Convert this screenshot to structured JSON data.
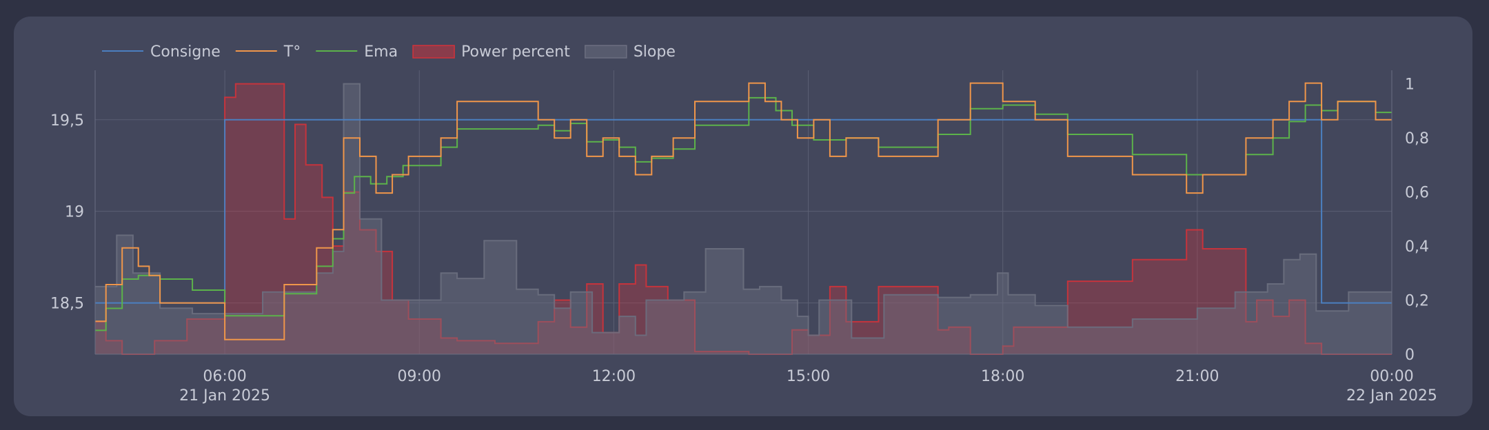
{
  "chart_data": {
    "type": "line",
    "title": "",
    "xlabel": "",
    "ylabel": "",
    "x_axis": {
      "ticks": [
        {
          "time": "2025-01-21T06:00",
          "label": "06:00",
          "sublabel": "21 Jan 2025"
        },
        {
          "time": "2025-01-21T09:00",
          "label": "09:00",
          "sublabel": ""
        },
        {
          "time": "2025-01-21T12:00",
          "label": "12:00",
          "sublabel": ""
        },
        {
          "time": "2025-01-21T15:00",
          "label": "15:00",
          "sublabel": ""
        },
        {
          "time": "2025-01-21T18:00",
          "label": "18:00",
          "sublabel": ""
        },
        {
          "time": "2025-01-21T21:00",
          "label": "21:00",
          "sublabel": ""
        },
        {
          "time": "2025-01-22T00:00",
          "label": "00:00",
          "sublabel": "22 Jan 2025"
        }
      ],
      "xlim": [
        "2025-01-21T04:00",
        "2025-01-22T00:00"
      ]
    },
    "y_left": {
      "ylim": [
        18.22,
        19.77
      ],
      "ticks": [
        {
          "value": 18.5,
          "label": "18,5"
        },
        {
          "value": 19,
          "label": "19"
        },
        {
          "value": 19.5,
          "label": "19,5"
        }
      ]
    },
    "y_right": {
      "ylim": [
        0,
        1.05
      ],
      "ticks": [
        {
          "value": 0,
          "label": "0"
        },
        {
          "value": 0.2,
          "label": "0,2"
        },
        {
          "value": 0.4,
          "label": "0,4"
        },
        {
          "value": 0.6,
          "label": "0,6"
        },
        {
          "value": 0.8,
          "label": "0,8"
        },
        {
          "value": 1,
          "label": "1"
        }
      ]
    },
    "grid": true,
    "legend_position": "top-left",
    "series": [
      {
        "name": "Power percent",
        "kind": "area-step",
        "axis": "right",
        "color": "#d2323a",
        "x": [
          "2025-01-21T04:00",
          "2025-01-21T04:10",
          "2025-01-21T04:25",
          "2025-01-21T04:55",
          "2025-01-21T05:25",
          "2025-01-21T06:00",
          "2025-01-21T06:10",
          "2025-01-21T06:55",
          "2025-01-21T07:05",
          "2025-01-21T07:15",
          "2025-01-21T07:30",
          "2025-01-21T07:40",
          "2025-01-21T07:50",
          "2025-01-21T08:05",
          "2025-01-21T08:20",
          "2025-01-21T08:35",
          "2025-01-21T08:50",
          "2025-01-21T09:20",
          "2025-01-21T09:35",
          "2025-01-21T10:10",
          "2025-01-21T10:50",
          "2025-01-21T11:05",
          "2025-01-21T11:20",
          "2025-01-21T11:35",
          "2025-01-21T11:50",
          "2025-01-21T12:05",
          "2025-01-21T12:20",
          "2025-01-21T12:30",
          "2025-01-21T12:50",
          "2025-01-21T13:15",
          "2025-01-21T14:05",
          "2025-01-21T14:45",
          "2025-01-21T15:00",
          "2025-01-21T15:20",
          "2025-01-21T15:35",
          "2025-01-21T16:05",
          "2025-01-21T16:15",
          "2025-01-21T16:25",
          "2025-01-21T17:00",
          "2025-01-21T17:10",
          "2025-01-21T17:30",
          "2025-01-21T18:00",
          "2025-01-21T18:10",
          "2025-01-21T18:30",
          "2025-01-21T19:00",
          "2025-01-21T20:00",
          "2025-01-21T20:50",
          "2025-01-21T21:05",
          "2025-01-21T21:45",
          "2025-01-21T21:55",
          "2025-01-21T22:10",
          "2025-01-21T22:25",
          "2025-01-21T22:40",
          "2025-01-21T22:55"
        ],
        "values": [
          0.12,
          0.05,
          0,
          0.05,
          0.13,
          0.95,
          1,
          0.5,
          0.85,
          0.7,
          0.58,
          0.4,
          0.6,
          0.46,
          0.38,
          0.2,
          0.13,
          0.06,
          0.05,
          0.04,
          0.12,
          0.2,
          0.1,
          0.26,
          0.08,
          0.26,
          0.33,
          0.25,
          0.2,
          0.01,
          0,
          0.09,
          0.07,
          0.25,
          0.12,
          0.25,
          0.25,
          0.25,
          0.09,
          0.1,
          0,
          0.03,
          0.1,
          0.1,
          0.27,
          0.35,
          0.46,
          0.39,
          0.12,
          0.2,
          0.14,
          0.2,
          0.04,
          0
        ],
        "end": "2025-01-22T00:00"
      },
      {
        "name": "Slope",
        "kind": "area-step",
        "axis": "right",
        "color": "#6c6f80",
        "x": [
          "2025-01-21T04:00",
          "2025-01-21T04:20",
          "2025-01-21T04:35",
          "2025-01-21T05:00",
          "2025-01-21T05:30",
          "2025-01-21T06:00",
          "2025-01-21T06:35",
          "2025-01-21T07:05",
          "2025-01-21T07:25",
          "2025-01-21T07:40",
          "2025-01-21T07:50",
          "2025-01-21T08:05",
          "2025-01-21T08:25",
          "2025-01-21T08:50",
          "2025-01-21T09:20",
          "2025-01-21T09:35",
          "2025-01-21T10:00",
          "2025-01-21T10:30",
          "2025-01-21T10:50",
          "2025-01-21T11:05",
          "2025-01-21T11:20",
          "2025-01-21T11:40",
          "2025-01-21T12:05",
          "2025-01-21T12:20",
          "2025-01-21T12:30",
          "2025-01-21T12:45",
          "2025-01-21T13:05",
          "2025-01-21T13:25",
          "2025-01-21T14:00",
          "2025-01-21T14:15",
          "2025-01-21T14:35",
          "2025-01-21T14:50",
          "2025-01-21T15:00",
          "2025-01-21T15:10",
          "2025-01-21T15:40",
          "2025-01-21T16:10",
          "2025-01-21T17:00",
          "2025-01-21T17:30",
          "2025-01-21T17:55",
          "2025-01-21T18:05",
          "2025-01-21T18:30",
          "2025-01-21T19:00",
          "2025-01-21T20:00",
          "2025-01-21T21:00",
          "2025-01-21T21:35",
          "2025-01-21T22:05",
          "2025-01-21T22:20",
          "2025-01-21T22:35",
          "2025-01-21T22:50",
          "2025-01-21T23:20"
        ],
        "values": [
          0.25,
          0.44,
          0.3,
          0.17,
          0.15,
          0.15,
          0.23,
          0.23,
          0.3,
          0.38,
          1,
          0.5,
          0.2,
          0.2,
          0.3,
          0.28,
          0.42,
          0.24,
          0.22,
          0.17,
          0.23,
          0.08,
          0.14,
          0.07,
          0.2,
          0.2,
          0.23,
          0.39,
          0.24,
          0.25,
          0.2,
          0.14,
          0.07,
          0.2,
          0.06,
          0.22,
          0.21,
          0.22,
          0.3,
          0.22,
          0.18,
          0.1,
          0.13,
          0.17,
          0.23,
          0.26,
          0.35,
          0.37,
          0.16,
          0.23
        ],
        "end": "2025-01-22T00:00"
      },
      {
        "name": "Consigne",
        "kind": "step",
        "axis": "left",
        "color": "#4b7fc0",
        "x": [
          "2025-01-21T04:00",
          "2025-01-21T06:00",
          "2025-01-21T22:55"
        ],
        "values": [
          18.5,
          19.5,
          18.5
        ],
        "end": "2025-01-22T00:00"
      },
      {
        "name": "Ema",
        "kind": "step",
        "axis": "left",
        "color": "#5cb34a",
        "x": [
          "2025-01-21T04:00",
          "2025-01-21T04:10",
          "2025-01-21T04:25",
          "2025-01-21T04:40",
          "2025-01-21T05:00",
          "2025-01-21T05:30",
          "2025-01-21T06:00",
          "2025-01-21T06:55",
          "2025-01-21T07:25",
          "2025-01-21T07:40",
          "2025-01-21T07:50",
          "2025-01-21T08:00",
          "2025-01-21T08:15",
          "2025-01-21T08:30",
          "2025-01-21T08:45",
          "2025-01-21T09:20",
          "2025-01-21T09:35",
          "2025-01-21T10:50",
          "2025-01-21T11:05",
          "2025-01-21T11:20",
          "2025-01-21T11:35",
          "2025-01-21T11:50",
          "2025-01-21T12:05",
          "2025-01-21T12:20",
          "2025-01-21T12:35",
          "2025-01-21T12:55",
          "2025-01-21T13:15",
          "2025-01-21T14:05",
          "2025-01-21T14:30",
          "2025-01-21T14:45",
          "2025-01-21T15:05",
          "2025-01-21T15:35",
          "2025-01-21T16:05",
          "2025-01-21T16:25",
          "2025-01-21T17:00",
          "2025-01-21T17:30",
          "2025-01-21T18:00",
          "2025-01-21T18:30",
          "2025-01-21T19:00",
          "2025-01-21T20:00",
          "2025-01-21T20:50",
          "2025-01-21T21:05",
          "2025-01-21T21:45",
          "2025-01-21T22:10",
          "2025-01-21T22:25",
          "2025-01-21T22:40",
          "2025-01-21T22:55",
          "2025-01-21T23:10",
          "2025-01-21T23:45"
        ],
        "values": [
          18.35,
          18.47,
          18.63,
          18.65,
          18.63,
          18.57,
          18.43,
          18.55,
          18.7,
          18.85,
          19.1,
          19.19,
          19.15,
          19.19,
          19.25,
          19.35,
          19.45,
          19.47,
          19.44,
          19.48,
          19.38,
          19.39,
          19.35,
          19.27,
          19.29,
          19.34,
          19.47,
          19.62,
          19.55,
          19.47,
          19.39,
          19.4,
          19.35,
          19.35,
          19.42,
          19.56,
          19.58,
          19.53,
          19.42,
          19.31,
          19.2,
          19.2,
          19.31,
          19.4,
          19.49,
          19.58,
          19.55,
          19.6,
          19.54
        ],
        "end": "2025-01-22T00:00"
      },
      {
        "name": "T°",
        "kind": "step",
        "axis": "left",
        "color": "#f0964a",
        "x": [
          "2025-01-21T04:00",
          "2025-01-21T04:10",
          "2025-01-21T04:25",
          "2025-01-21T04:40",
          "2025-01-21T04:50",
          "2025-01-21T05:00",
          "2025-01-21T06:00",
          "2025-01-21T06:55",
          "2025-01-21T07:25",
          "2025-01-21T07:40",
          "2025-01-21T07:50",
          "2025-01-21T08:05",
          "2025-01-21T08:20",
          "2025-01-21T08:35",
          "2025-01-21T08:50",
          "2025-01-21T09:20",
          "2025-01-21T09:35",
          "2025-01-21T10:50",
          "2025-01-21T11:05",
          "2025-01-21T11:20",
          "2025-01-21T11:35",
          "2025-01-21T11:50",
          "2025-01-21T12:05",
          "2025-01-21T12:20",
          "2025-01-21T12:35",
          "2025-01-21T12:55",
          "2025-01-21T13:15",
          "2025-01-21T14:05",
          "2025-01-21T14:20",
          "2025-01-21T14:35",
          "2025-01-21T14:50",
          "2025-01-21T15:05",
          "2025-01-21T15:20",
          "2025-01-21T15:35",
          "2025-01-21T16:05",
          "2025-01-21T16:25",
          "2025-01-21T17:00",
          "2025-01-21T17:30",
          "2025-01-21T18:00",
          "2025-01-21T18:30",
          "2025-01-21T19:00",
          "2025-01-21T20:00",
          "2025-01-21T20:50",
          "2025-01-21T21:05",
          "2025-01-21T21:45",
          "2025-01-21T22:10",
          "2025-01-21T22:25",
          "2025-01-21T22:40",
          "2025-01-21T22:55",
          "2025-01-21T23:10",
          "2025-01-21T23:45"
        ],
        "values": [
          18.4,
          18.6,
          18.8,
          18.7,
          18.65,
          18.5,
          18.3,
          18.6,
          18.8,
          18.9,
          19.4,
          19.3,
          19.1,
          19.2,
          19.3,
          19.4,
          19.6,
          19.5,
          19.4,
          19.5,
          19.3,
          19.4,
          19.3,
          19.2,
          19.3,
          19.4,
          19.6,
          19.7,
          19.6,
          19.5,
          19.4,
          19.5,
          19.3,
          19.4,
          19.3,
          19.3,
          19.5,
          19.7,
          19.6,
          19.5,
          19.3,
          19.2,
          19.1,
          19.2,
          19.4,
          19.5,
          19.6,
          19.7,
          19.5,
          19.6,
          19.5
        ],
        "end": "2025-01-22T00:00"
      }
    ]
  }
}
